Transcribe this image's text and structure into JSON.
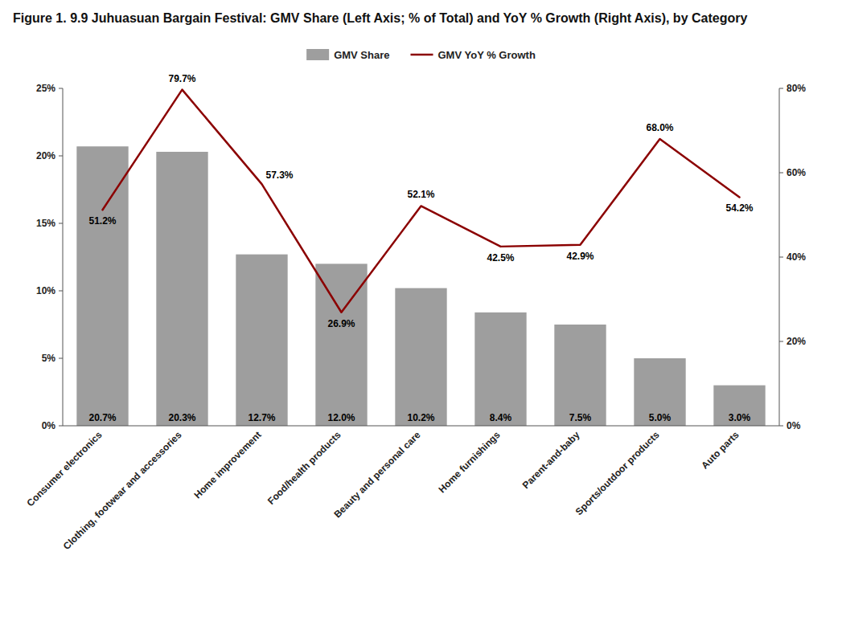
{
  "chart_data": {
    "type": "bar",
    "title": "Figure 1. 9.9 Juhuasuan Bargain Festival: GMV Share (Left Axis; % of Total) and YoY % Growth (Right Axis), by Category",
    "categories": [
      "Consumer electronics",
      "Clothing, footwear and accessories",
      "Home improvement",
      "Food/health products",
      "Beauty and personal care",
      "Home furnishings",
      "Parent-and-baby",
      "Sports/outdoor products",
      "Auto parts"
    ],
    "series": [
      {
        "name": "GMV Share",
        "type": "bar",
        "color": "#9e9e9e",
        "values": [
          20.7,
          20.3,
          12.7,
          12.0,
          10.2,
          8.4,
          7.5,
          5.0,
          3.0
        ],
        "value_labels": [
          "20.7%",
          "20.3%",
          "12.7%",
          "12.0%",
          "10.2%",
          "8.4%",
          "7.5%",
          "5.0%",
          "3.0%"
        ]
      },
      {
        "name": "GMV YoY % Growth",
        "type": "line",
        "axis": "y2",
        "color": "#8b0000",
        "values": [
          51.2,
          79.7,
          57.3,
          26.9,
          52.1,
          42.5,
          42.9,
          68.0,
          54.2
        ],
        "value_labels": [
          "51.2%",
          "79.7%",
          "57.3%",
          "26.9%",
          "52.1%",
          "42.5%",
          "42.9%",
          "68.0%",
          "54.2%"
        ]
      }
    ],
    "ylim": [
      0,
      25
    ],
    "yticks": [
      {
        "value": 0,
        "label": "0%"
      },
      {
        "value": 5,
        "label": "5%"
      },
      {
        "value": 10,
        "label": "10%"
      },
      {
        "value": 15,
        "label": "15%"
      },
      {
        "value": 20,
        "label": "20%"
      },
      {
        "value": 25,
        "label": "25%"
      }
    ],
    "y2lim": [
      0,
      80
    ],
    "y2ticks": [
      {
        "value": 0,
        "label": "0%"
      },
      {
        "value": 20,
        "label": "20%"
      },
      {
        "value": 40,
        "label": "40%"
      },
      {
        "value": 60,
        "label": "60%"
      },
      {
        "value": 80,
        "label": "80%"
      }
    ],
    "grid": false,
    "legend": "top",
    "data_labels": true
  }
}
